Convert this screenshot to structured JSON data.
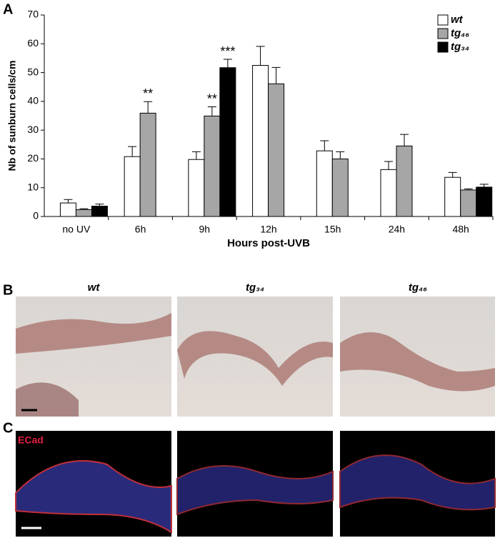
{
  "chart_data": {
    "type": "bar",
    "panel_label": "A",
    "categories": [
      "no UV",
      "6h",
      "9h",
      "12h",
      "15h",
      "24h",
      "48h"
    ],
    "series": [
      {
        "name": "wt",
        "color": "#ffffff",
        "values": [
          4.7,
          20.8,
          19.8,
          52.5,
          22.8,
          16.3,
          13.6
        ],
        "errors": [
          1.2,
          3.5,
          2.7,
          6.6,
          3.5,
          2.8,
          1.7
        ]
      },
      {
        "name": "tg₄₆",
        "color": "#a6a6a6",
        "values": [
          2.4,
          35.9,
          34.9,
          46.1,
          20.0,
          24.5,
          9.2
        ],
        "errors": [
          0.3,
          4.0,
          3.2,
          5.7,
          2.5,
          4.0,
          0.4
        ]
      },
      {
        "name": "tg₃₄",
        "color": "#000000",
        "values": [
          3.6,
          null,
          51.7,
          null,
          null,
          null,
          10.2
        ],
        "errors": [
          0.7,
          null,
          2.9,
          null,
          null,
          null,
          1.0
        ]
      }
    ],
    "annotations": [
      {
        "text": "**",
        "category": 1,
        "series": 1
      },
      {
        "text": "**",
        "category": 2,
        "series": 1
      },
      {
        "text": "***",
        "category": 2,
        "series": 2
      }
    ],
    "ylim": [
      0,
      70
    ],
    "yticks": [
      0,
      10,
      20,
      30,
      40,
      50,
      60,
      70
    ],
    "y_label": "Nb of sunburn cells/cm",
    "x_label": "Hours post-UVB",
    "legend": "top-right"
  },
  "panels": {
    "b_label": "B",
    "c_label": "C",
    "columns": [
      "wt",
      "tg₃₄",
      "tg₄₆"
    ],
    "stain": "ECad"
  }
}
